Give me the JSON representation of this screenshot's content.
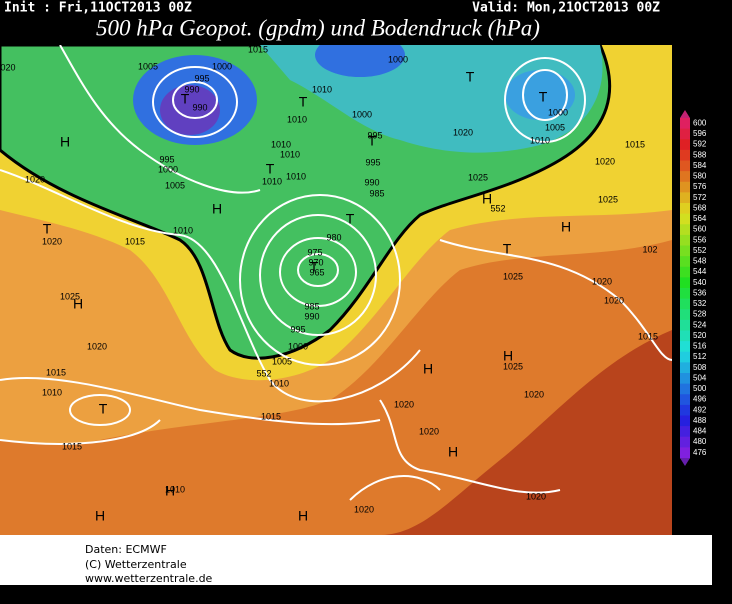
{
  "header": {
    "init": "Init : Fri,11OCT2013 00Z",
    "valid": "Valid: Mon,21OCT2013 00Z",
    "title": "500 hPa Geopot. (gpdm) und Bodendruck (hPa)"
  },
  "colorbar": {
    "labels": [
      600,
      596,
      592,
      588,
      584,
      580,
      576,
      572,
      568,
      564,
      560,
      556,
      552,
      548,
      544,
      540,
      536,
      532,
      528,
      524,
      520,
      516,
      512,
      508,
      504,
      500,
      496,
      492,
      488,
      484,
      480,
      476
    ]
  },
  "map": {
    "labels": [
      "020",
      "1005",
      "1000",
      "995",
      "990",
      "990",
      "T",
      "1015",
      "1000",
      "T",
      "T",
      "1000",
      "1005",
      "1010",
      "1015",
      "1020",
      "1010",
      "T",
      "1010",
      "1000",
      "995",
      "T",
      "1020",
      "H",
      "1010",
      "1010",
      "995",
      "1000",
      "T",
      "1010",
      "1010",
      "995",
      "1020",
      "1005",
      "990",
      "985",
      "1025",
      "H",
      "552",
      "1025",
      "H",
      "T",
      "1010",
      "T",
      "1020",
      "1015",
      "980",
      "975",
      "970",
      "965",
      "T",
      "H",
      "T",
      "1025",
      "1020",
      "102",
      "1025",
      "H",
      "985",
      "990",
      "1020",
      "995",
      "1000",
      "1020",
      "1005",
      "H",
      "1025",
      "552",
      "1010",
      "1015",
      "H",
      "1010",
      "T",
      "1020",
      "1020",
      "1015",
      "1015",
      "1020",
      "1015",
      "H",
      "1010",
      "H",
      "1020",
      "1020",
      "H",
      "H"
    ]
  },
  "footer": {
    "lines": [
      "Daten: ECMWF",
      "(C) Wetterzentrale",
      "www.wetterzentrale.de"
    ]
  }
}
